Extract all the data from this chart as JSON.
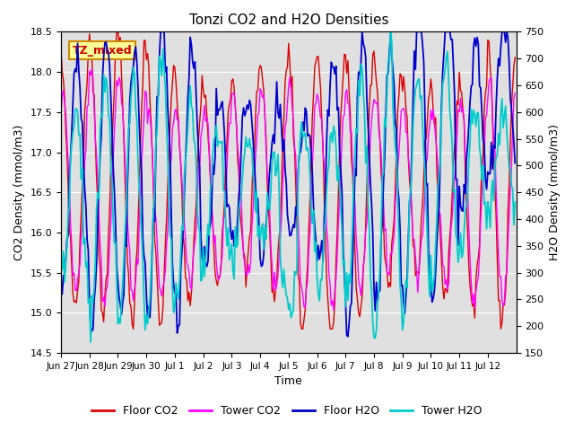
{
  "title": "Tonzi CO2 and H2O Densities",
  "xlabel": "Time",
  "ylabel_left": "CO2 Density (mmol/m3)",
  "ylabel_right": "H2O Density (mmol/m3)",
  "annotation": "TZ_mixed",
  "annotation_color": "#cc0000",
  "annotation_bg": "#ffff99",
  "annotation_border": "#cc8800",
  "ylim_left": [
    14.5,
    18.5
  ],
  "ylim_right": [
    150,
    750
  ],
  "yticks_left": [
    14.5,
    15.0,
    15.5,
    16.0,
    16.5,
    17.0,
    17.5,
    18.0,
    18.5
  ],
  "yticks_right": [
    150,
    200,
    250,
    300,
    350,
    400,
    450,
    500,
    550,
    600,
    650,
    700,
    750
  ],
  "colors": {
    "floor_co2": "#dd0000",
    "tower_co2": "#ff00ff",
    "floor_h2o": "#0000cc",
    "tower_h2o": "#00cccc"
  },
  "legend_labels": [
    "Floor CO2",
    "Tower CO2",
    "Floor H2O",
    "Tower H2O"
  ],
  "background_color": "#e0e0e0",
  "n_points": 384,
  "xtick_positions": [
    0,
    24,
    48,
    72,
    96,
    120,
    144,
    168,
    192,
    216,
    240,
    264,
    288,
    312,
    336,
    360
  ],
  "xtick_labels": [
    "Jun 27",
    "Jun 28",
    "Jun 29",
    "Jun 30",
    "Jul 1",
    "Jul 2",
    "Jul 3",
    "Jul 4",
    "Jul 5",
    "Jul 6",
    "Jul 7",
    "Jul 8",
    "Jul 9",
    "Jul 10",
    "Jul 11",
    "Jul 12"
  ]
}
